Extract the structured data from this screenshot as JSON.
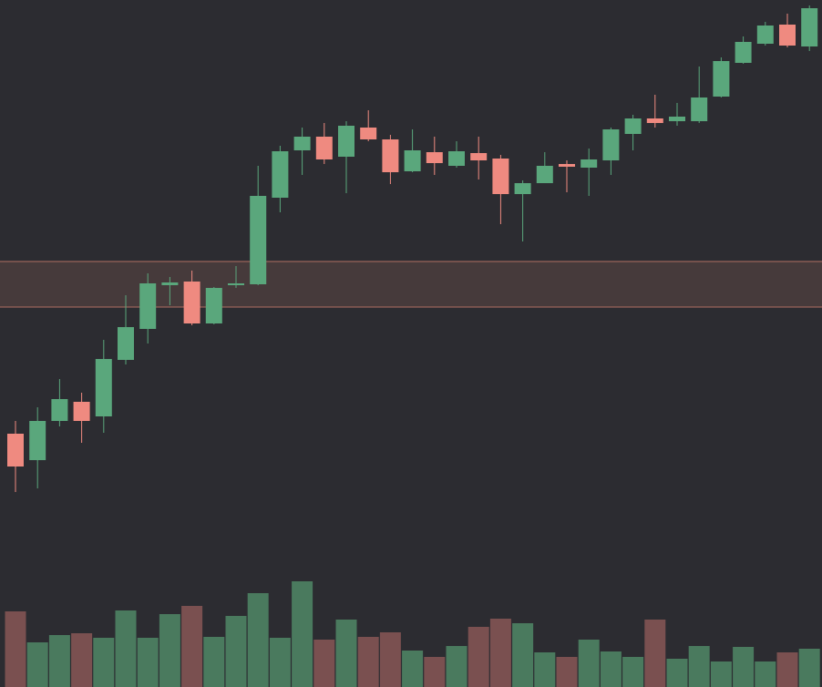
{
  "chart_data": {
    "type": "candlestick",
    "ylim": [
      0,
      754
    ],
    "volume_ylim": [
      0,
      754
    ],
    "up_color": "#5aa77c",
    "down_color": "#ef8a80",
    "volume_up_color": "#4a7a5e",
    "volume_down_color": "#7a5050",
    "background": "#2c2c31",
    "zone": [
      417,
      467
    ],
    "zone_color": "#463a3b",
    "zone_border_color": "#b06e62",
    "open": [
      278,
      249,
      292,
      313,
      297,
      359,
      393,
      441,
      445,
      399,
      441,
      442,
      537,
      589,
      604,
      582,
      614,
      601,
      566,
      587,
      572,
      586,
      580,
      541,
      553,
      574,
      570,
      578,
      607,
      624,
      621,
      621,
      648,
      685,
      706,
      727,
      703
    ],
    "high": [
      292,
      307,
      338,
      323,
      381,
      430,
      454,
      450,
      457,
      439,
      462,
      572,
      594,
      614,
      619,
      621,
      633,
      606,
      612,
      604,
      599,
      604,
      584,
      556,
      587,
      578,
      591,
      614,
      628,
      650,
      641,
      681,
      691,
      714,
      730,
      739,
      748
    ],
    "low": [
      214,
      218,
      286,
      268,
      279,
      354,
      377,
      419,
      397,
      398,
      438,
      441,
      521,
      562,
      574,
      542,
      599,
      552,
      565,
      562,
      570,
      557,
      508,
      489,
      553,
      543,
      539,
      562,
      589,
      614,
      616,
      619,
      647,
      684,
      704,
      702,
      698
    ],
    "close": [
      242,
      292,
      316,
      292,
      360,
      395,
      443,
      444,
      399,
      438,
      443,
      539,
      588,
      604,
      579,
      616,
      601,
      565,
      589,
      575,
      588,
      578,
      541,
      553,
      572,
      571,
      579,
      612,
      624,
      619,
      626,
      647,
      687,
      708,
      726,
      704,
      745
    ],
    "volume": [
      83,
      49,
      57,
      59,
      54,
      84,
      54,
      80,
      89,
      55,
      78,
      103,
      54,
      116,
      52,
      74,
      55,
      60,
      40,
      33,
      45,
      66,
      75,
      70,
      38,
      33,
      52,
      39,
      33,
      74,
      31,
      45,
      28,
      44,
      28,
      38,
      42
    ]
  }
}
